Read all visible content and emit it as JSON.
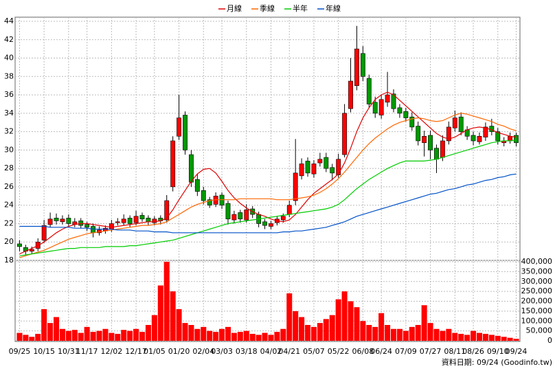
{
  "chart_data": {
    "type": "candlestick",
    "categories": [
      "09/25",
      null,
      null,
      null,
      "10/15",
      null,
      null,
      null,
      "10/31",
      null,
      null,
      "11/17",
      null,
      null,
      null,
      "12/02",
      null,
      null,
      null,
      "12/17",
      null,
      null,
      "01/05",
      null,
      null,
      null,
      "01/20",
      null,
      null,
      null,
      "02/04",
      null,
      null,
      "03/03",
      null,
      null,
      null,
      "03/18",
      null,
      null,
      null,
      "04/02",
      null,
      null,
      "04/21",
      null,
      null,
      null,
      "05/07",
      null,
      null,
      null,
      "05/22",
      null,
      null,
      null,
      "06/08",
      null,
      null,
      "06/24",
      null,
      null,
      null,
      "07/09",
      null,
      null,
      null,
      "07/27",
      null,
      null,
      null,
      "08/11",
      null,
      null,
      "08/26",
      null,
      null,
      null,
      "09/10",
      null,
      null,
      "09/24"
    ],
    "open": [
      19.8,
      19.4,
      19.0,
      19.3,
      20.2,
      21.9,
      22.6,
      22.2,
      22.6,
      21.9,
      22.3,
      21.9,
      21.7,
      21.0,
      21.2,
      21.4,
      22.1,
      22.1,
      22.6,
      22.1,
      22.9,
      22.6,
      22.1,
      22.6,
      22.4,
      26.0,
      31.5,
      33.8,
      29.5,
      26.8,
      25.6,
      24.6,
      24.1,
      25.1,
      24.2,
      22.4,
      23.2,
      22.4,
      23.6,
      23.0,
      22.2,
      21.7,
      22.1,
      22.4,
      23.0,
      24.5,
      27.2,
      28.8,
      27.4,
      28.6,
      29.2,
      28.1,
      27.3,
      29.5,
      34.5,
      37.0,
      40.5,
      37.8,
      35.2,
      33.8,
      35.2,
      36.1,
      34.6,
      34.2,
      33.6,
      32.6,
      30.8,
      31.6,
      30.2,
      29.2,
      31.0,
      32.4,
      33.6,
      32.2,
      31.6,
      30.9,
      31.4,
      32.6,
      32.0,
      30.8,
      31.0,
      31.6
    ],
    "high": [
      20.2,
      19.7,
      19.5,
      20.4,
      22.4,
      23.2,
      23.1,
      22.9,
      23.0,
      22.6,
      22.6,
      22.2,
      22.0,
      21.7,
      21.8,
      22.4,
      22.6,
      23.0,
      22.9,
      23.4,
      23.2,
      22.9,
      22.8,
      22.9,
      25.1,
      31.5,
      36.0,
      34.2,
      30.0,
      27.4,
      26.0,
      24.9,
      25.4,
      25.4,
      24.5,
      23.4,
      23.5,
      24.1,
      23.9,
      23.3,
      22.5,
      22.3,
      22.8,
      23.1,
      24.5,
      31.2,
      29.1,
      29.2,
      28.9,
      29.7,
      29.7,
      28.5,
      29.6,
      35.0,
      40.0,
      43.5,
      41.3,
      38.2,
      35.8,
      36.0,
      38.5,
      36.6,
      35.0,
      34.6,
      34.1,
      33.1,
      32.1,
      32.1,
      30.6,
      31.6,
      33.1,
      34.3,
      34.1,
      32.6,
      32.0,
      31.9,
      33.0,
      33.4,
      32.4,
      31.4,
      31.9,
      31.9
    ],
    "low": [
      19.0,
      18.6,
      18.7,
      19.0,
      19.9,
      21.6,
      21.9,
      21.9,
      21.6,
      21.6,
      21.5,
      21.2,
      20.5,
      20.7,
      20.9,
      21.1,
      21.8,
      21.8,
      21.6,
      21.8,
      22.2,
      21.8,
      21.8,
      21.9,
      22.1,
      25.5,
      31.1,
      29.5,
      26.0,
      25.0,
      24.1,
      23.7,
      23.8,
      23.6,
      21.9,
      22.0,
      22.1,
      22.1,
      22.6,
      21.6,
      21.4,
      21.4,
      21.8,
      22.1,
      22.7,
      24.0,
      26.8,
      27.1,
      27.0,
      28.2,
      27.6,
      26.7,
      27.0,
      29.2,
      34.1,
      36.5,
      37.5,
      34.6,
      33.5,
      33.4,
      34.7,
      34.1,
      33.5,
      33.1,
      32.1,
      30.5,
      29.3,
      29.0,
      27.5,
      28.8,
      30.6,
      32.0,
      31.6,
      31.1,
      30.5,
      30.6,
      31.0,
      31.6,
      30.6,
      30.4,
      30.7,
      30.4
    ],
    "close": [
      19.5,
      19.0,
      19.2,
      20.0,
      21.8,
      22.5,
      22.3,
      22.5,
      22.0,
      22.2,
      21.8,
      21.6,
      21.0,
      21.3,
      21.5,
      22.0,
      22.2,
      22.5,
      22.0,
      22.8,
      22.5,
      22.2,
      22.5,
      22.3,
      24.5,
      31.0,
      33.5,
      30.0,
      26.5,
      25.5,
      24.5,
      24.0,
      25.0,
      24.0,
      22.5,
      23.0,
      22.5,
      23.5,
      23.0,
      22.0,
      21.8,
      22.0,
      22.5,
      22.8,
      24.0,
      27.5,
      28.5,
      27.5,
      28.5,
      29.0,
      28.0,
      27.5,
      29.0,
      34.0,
      37.5,
      41.0,
      38.0,
      35.0,
      34.0,
      35.5,
      36.0,
      34.5,
      34.0,
      33.5,
      32.5,
      31.0,
      31.5,
      30.0,
      29.0,
      31.0,
      32.5,
      33.5,
      32.0,
      31.5,
      31.0,
      31.5,
      32.5,
      32.0,
      31.0,
      31.0,
      31.5,
      30.8
    ],
    "volume": [
      40000,
      30000,
      20000,
      35000,
      160000,
      90000,
      120000,
      60000,
      50000,
      55000,
      40000,
      70000,
      45000,
      50000,
      60000,
      40000,
      35000,
      55000,
      50000,
      60000,
      45000,
      80000,
      130000,
      280000,
      400000,
      250000,
      160000,
      90000,
      80000,
      60000,
      70000,
      50000,
      45000,
      60000,
      70000,
      40000,
      45000,
      50000,
      35000,
      30000,
      40000,
      30000,
      45000,
      60000,
      240000,
      150000,
      120000,
      80000,
      70000,
      90000,
      110000,
      130000,
      210000,
      250000,
      200000,
      170000,
      100000,
      80000,
      70000,
      140000,
      80000,
      60000,
      60000,
      50000,
      70000,
      80000,
      180000,
      90000,
      60000,
      50000,
      60000,
      40000,
      35000,
      30000,
      50000,
      40000,
      35000,
      30000,
      25000,
      20000,
      15000,
      10000
    ],
    "up_color": "#ff0000",
    "down_color": "#009900",
    "volume_color": "#ff0000",
    "series": [
      {
        "name": "月線",
        "color": "#e00000",
        "values": [
          18.7,
          19.0,
          19.3,
          19.6,
          20.0,
          20.5,
          21.0,
          21.4,
          21.7,
          21.9,
          22.0,
          22.0,
          21.9,
          21.8,
          21.7,
          21.6,
          21.7,
          21.8,
          21.9,
          22.0,
          22.1,
          22.2,
          22.2,
          22.3,
          22.6,
          23.5,
          24.6,
          25.6,
          26.6,
          27.4,
          27.9,
          28.0,
          27.5,
          26.6,
          25.6,
          24.8,
          24.2,
          23.7,
          23.3,
          23.0,
          22.8,
          22.5,
          22.3,
          22.2,
          22.4,
          23.0,
          23.8,
          24.6,
          25.3,
          25.8,
          26.3,
          26.8,
          27.4,
          28.6,
          30.2,
          32.0,
          33.5,
          34.6,
          35.5,
          36.0,
          36.3,
          36.0,
          35.4,
          34.8,
          34.2,
          33.6,
          33.0,
          32.4,
          31.8,
          31.4,
          31.2,
          31.4,
          31.8,
          32.2,
          32.4,
          32.5,
          32.4,
          32.2,
          31.9,
          31.7,
          31.5,
          31.4
        ]
      },
      {
        "name": "季線",
        "color": "#ff6600",
        "values": [
          18.3,
          18.5,
          18.7,
          18.9,
          19.1,
          19.4,
          19.7,
          20.0,
          20.3,
          20.5,
          20.7,
          20.9,
          21.0,
          21.1,
          21.2,
          21.3,
          21.4,
          21.5,
          21.6,
          21.7,
          21.8,
          21.8,
          21.9,
          22.0,
          22.2,
          22.6,
          23.0,
          23.4,
          23.8,
          24.1,
          24.3,
          24.5,
          24.6,
          24.6,
          24.6,
          24.6,
          24.7,
          24.7,
          24.7,
          24.7,
          24.7,
          24.7,
          24.6,
          24.6,
          24.6,
          24.7,
          24.8,
          24.9,
          25.1,
          25.4,
          25.8,
          26.3,
          26.9,
          27.6,
          28.4,
          29.2,
          30.0,
          30.7,
          31.3,
          31.8,
          32.3,
          32.7,
          33.0,
          33.2,
          33.4,
          33.5,
          33.4,
          33.2,
          33.1,
          33.2,
          33.5,
          33.8,
          34.0,
          33.9,
          33.7,
          33.5,
          33.3,
          33.1,
          32.8,
          32.6,
          32.3,
          32.1
        ]
      },
      {
        "name": "半年",
        "color": "#00cc00",
        "values": [
          18.5,
          18.6,
          18.7,
          18.8,
          18.9,
          19.0,
          19.1,
          19.2,
          19.3,
          19.3,
          19.4,
          19.4,
          19.4,
          19.4,
          19.5,
          19.5,
          19.5,
          19.5,
          19.6,
          19.6,
          19.7,
          19.8,
          19.9,
          20.0,
          20.1,
          20.2,
          20.4,
          20.6,
          20.8,
          21.0,
          21.2,
          21.4,
          21.6,
          21.8,
          22.0,
          22.1,
          22.2,
          22.3,
          22.4,
          22.5,
          22.6,
          22.7,
          22.8,
          22.9,
          23.0,
          23.1,
          23.2,
          23.3,
          23.4,
          23.5,
          23.6,
          23.8,
          24.1,
          24.6,
          25.2,
          25.8,
          26.3,
          26.8,
          27.2,
          27.6,
          28.0,
          28.3,
          28.6,
          28.8,
          28.8,
          28.8,
          28.8,
          28.9,
          29.0,
          29.2,
          29.4,
          29.6,
          29.8,
          30.0,
          30.2,
          30.4,
          30.6,
          30.8,
          30.9,
          31.0,
          31.0,
          31.1
        ]
      },
      {
        "name": "年線",
        "color": "#0050c8",
        "values": [
          21.7,
          21.7,
          21.7,
          21.7,
          21.7,
          21.6,
          21.6,
          21.6,
          21.6,
          21.5,
          21.5,
          21.5,
          21.4,
          21.4,
          21.4,
          21.4,
          21.3,
          21.3,
          21.3,
          21.2,
          21.2,
          21.2,
          21.1,
          21.1,
          21.1,
          21.0,
          21.0,
          21.0,
          21.0,
          21.0,
          21.0,
          21.0,
          21.0,
          21.0,
          21.0,
          21.0,
          21.0,
          21.0,
          21.0,
          21.0,
          21.0,
          21.0,
          21.0,
          21.1,
          21.1,
          21.2,
          21.2,
          21.3,
          21.4,
          21.5,
          21.6,
          21.8,
          22.0,
          22.2,
          22.5,
          22.8,
          23.0,
          23.2,
          23.4,
          23.6,
          23.8,
          24.0,
          24.2,
          24.4,
          24.6,
          24.8,
          25.0,
          25.2,
          25.3,
          25.5,
          25.7,
          25.8,
          26.0,
          26.2,
          26.3,
          26.5,
          26.7,
          26.8,
          27.0,
          27.1,
          27.3,
          27.4
        ]
      }
    ],
    "ylim": [
      18,
      44
    ],
    "yticks": [
      18,
      20,
      22,
      24,
      26,
      28,
      30,
      32,
      34,
      36,
      38,
      40,
      42,
      44
    ],
    "y2lim": [
      0,
      400000
    ],
    "y2ticks": [
      0,
      {
        "value": 50000,
        "label": "50,000"
      },
      {
        "value": 100000,
        "label": "100,000"
      },
      {
        "value": 150000,
        "label": "150,000"
      },
      {
        "value": 200000,
        "label": "200,000"
      },
      {
        "value": 250000,
        "label": "250,000"
      },
      {
        "value": 300000,
        "label": "300,000"
      },
      {
        "value": 350000,
        "label": "350,000"
      },
      {
        "value": 400000,
        "label": "400,000"
      }
    ],
    "grid": true,
    "source": "資料日期: 09/24 (Goodinfo.tw)"
  }
}
